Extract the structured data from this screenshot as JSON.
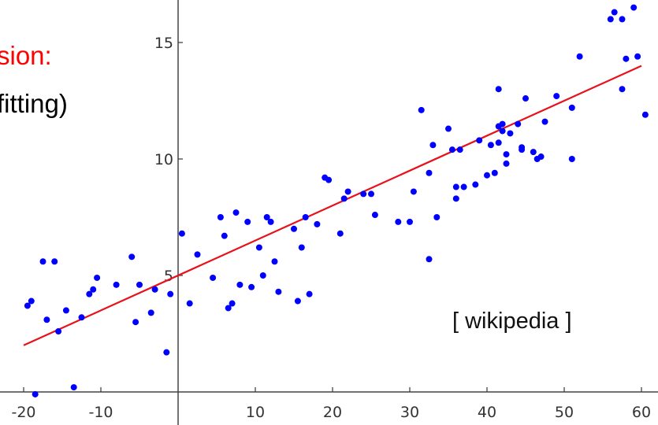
{
  "slide": {
    "heading_line_1": "sion:",
    "heading_line_2": "fitting)",
    "heading_color": "#ff0000",
    "source_note": "[ wikipedia ]"
  },
  "chart_data": {
    "type": "scatter",
    "title": "",
    "xlabel": "",
    "ylabel": "",
    "xlim": [
      -21,
      61
    ],
    "ylim": [
      -0.2,
      16.8
    ],
    "x_ticks": [
      -20,
      -10,
      10,
      20,
      30,
      40,
      50,
      60
    ],
    "x_tick_labels": [
      "-20",
      "-10",
      "10",
      "20",
      "30",
      "40",
      "50",
      "60"
    ],
    "y_ticks": [
      5,
      10,
      15
    ],
    "y_tick_labels": [
      "5",
      "10",
      "15"
    ],
    "grid": false,
    "point_color": "#0000ff",
    "line_color": "#e8111b",
    "points": [
      {
        "x": -19.5,
        "y": 3.7
      },
      {
        "x": -19,
        "y": 3.9
      },
      {
        "x": -18.5,
        "y": -0.1
      },
      {
        "x": -17.5,
        "y": 5.6
      },
      {
        "x": -17,
        "y": 3.1
      },
      {
        "x": -16,
        "y": 5.6
      },
      {
        "x": -15.5,
        "y": 2.6
      },
      {
        "x": -14.5,
        "y": 3.5
      },
      {
        "x": -13.5,
        "y": 0.2
      },
      {
        "x": -12.5,
        "y": 3.2
      },
      {
        "x": -11.5,
        "y": 4.2
      },
      {
        "x": -11,
        "y": 4.4
      },
      {
        "x": -10.5,
        "y": 4.9
      },
      {
        "x": -8,
        "y": 4.6
      },
      {
        "x": -6,
        "y": 5.8
      },
      {
        "x": -5.5,
        "y": 3.0
      },
      {
        "x": -5,
        "y": 4.6
      },
      {
        "x": -3.5,
        "y": 3.4
      },
      {
        "x": -3,
        "y": 4.4
      },
      {
        "x": -1.5,
        "y": 1.7
      },
      {
        "x": -1,
        "y": 4.2
      },
      {
        "x": 0.5,
        "y": 6.8
      },
      {
        "x": 1.5,
        "y": 3.8
      },
      {
        "x": 2.5,
        "y": 5.9
      },
      {
        "x": 4.5,
        "y": 4.9
      },
      {
        "x": 5.5,
        "y": 7.5
      },
      {
        "x": 6,
        "y": 6.7
      },
      {
        "x": 6.5,
        "y": 3.6
      },
      {
        "x": 7,
        "y": 3.8
      },
      {
        "x": 7.5,
        "y": 7.7
      },
      {
        "x": 8,
        "y": 4.6
      },
      {
        "x": 9,
        "y": 7.3
      },
      {
        "x": 9.5,
        "y": 4.5
      },
      {
        "x": 10.5,
        "y": 6.2
      },
      {
        "x": 11,
        "y": 5.0
      },
      {
        "x": 11.5,
        "y": 7.5
      },
      {
        "x": 12,
        "y": 7.3
      },
      {
        "x": 12.5,
        "y": 5.6
      },
      {
        "x": 13,
        "y": 4.3
      },
      {
        "x": 15,
        "y": 7.0
      },
      {
        "x": 15.5,
        "y": 3.9
      },
      {
        "x": 16,
        "y": 6.2
      },
      {
        "x": 16.5,
        "y": 7.5
      },
      {
        "x": 17,
        "y": 4.2
      },
      {
        "x": 18,
        "y": 7.2
      },
      {
        "x": 19,
        "y": 9.2
      },
      {
        "x": 19.5,
        "y": 9.1
      },
      {
        "x": 21,
        "y": 6.8
      },
      {
        "x": 21.5,
        "y": 8.3
      },
      {
        "x": 22,
        "y": 8.6
      },
      {
        "x": 24,
        "y": 8.5
      },
      {
        "x": 25,
        "y": 8.5
      },
      {
        "x": 25.5,
        "y": 7.6
      },
      {
        "x": 28.5,
        "y": 7.3
      },
      {
        "x": 30,
        "y": 7.3
      },
      {
        "x": 30.5,
        "y": 8.6
      },
      {
        "x": 31.5,
        "y": 12.1
      },
      {
        "x": 32.5,
        "y": 9.4
      },
      {
        "x": 32.5,
        "y": 5.7
      },
      {
        "x": 33,
        "y": 10.6
      },
      {
        "x": 33.5,
        "y": 7.5
      },
      {
        "x": 35,
        "y": 11.3
      },
      {
        "x": 35.5,
        "y": 10.4
      },
      {
        "x": 36,
        "y": 8.8
      },
      {
        "x": 36,
        "y": 8.3
      },
      {
        "x": 36.5,
        "y": 10.4
      },
      {
        "x": 37,
        "y": 8.8
      },
      {
        "x": 38.5,
        "y": 8.9
      },
      {
        "x": 39,
        "y": 10.8
      },
      {
        "x": 40,
        "y": 9.3
      },
      {
        "x": 40.5,
        "y": 10.6
      },
      {
        "x": 41,
        "y": 9.4
      },
      {
        "x": 41.5,
        "y": 11.4
      },
      {
        "x": 41.5,
        "y": 10.7
      },
      {
        "x": 41.5,
        "y": 13.0
      },
      {
        "x": 42,
        "y": 11.5
      },
      {
        "x": 42,
        "y": 11.2
      },
      {
        "x": 42.5,
        "y": 9.8
      },
      {
        "x": 42.5,
        "y": 10.2
      },
      {
        "x": 43,
        "y": 11.1
      },
      {
        "x": 44,
        "y": 11.5
      },
      {
        "x": 44.5,
        "y": 10.5
      },
      {
        "x": 44.5,
        "y": 10.4
      },
      {
        "x": 45,
        "y": 12.6
      },
      {
        "x": 46,
        "y": 10.3
      },
      {
        "x": 46.5,
        "y": 10.0
      },
      {
        "x": 47,
        "y": 10.1
      },
      {
        "x": 47.5,
        "y": 11.6
      },
      {
        "x": 49,
        "y": 12.7
      },
      {
        "x": 51,
        "y": 12.2
      },
      {
        "x": 51,
        "y": 10.0
      },
      {
        "x": 52,
        "y": 14.4
      },
      {
        "x": 56,
        "y": 16.0
      },
      {
        "x": 56.5,
        "y": 16.3
      },
      {
        "x": 57.5,
        "y": 13.0
      },
      {
        "x": 57.5,
        "y": 16.0
      },
      {
        "x": 58,
        "y": 14.3
      },
      {
        "x": 59,
        "y": 16.5
      },
      {
        "x": 59.5,
        "y": 14.4
      },
      {
        "x": 60.5,
        "y": 11.9
      }
    ],
    "fit_line": {
      "x": [
        -20,
        60
      ],
      "y": [
        2.0,
        14.0
      ]
    }
  }
}
